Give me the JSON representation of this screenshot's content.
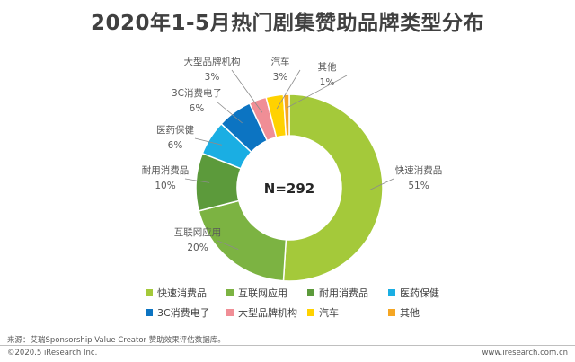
{
  "chart_data": {
    "type": "pie",
    "title": "2020年1-5月热门剧集赞助品牌类型分布",
    "center_text": "N=292",
    "legend_placement": "bottom",
    "slices": [
      {
        "name": "快速消费品",
        "value": 51,
        "label": "51%",
        "color": "#a4c93a"
      },
      {
        "name": "互联网应用",
        "value": 20,
        "label": "20%",
        "color": "#7cb342"
      },
      {
        "name": "耐用消费品",
        "value": 10,
        "label": "10%",
        "color": "#5c9a3b"
      },
      {
        "name": "医药保健",
        "value": 6,
        "label": "6%",
        "color": "#1aaee3"
      },
      {
        "name": "3C消费电子",
        "value": 6,
        "label": "6%",
        "color": "#0c74c2"
      },
      {
        "name": "大型品牌机构",
        "value": 3,
        "label": "3%",
        "color": "#f08e96"
      },
      {
        "name": "汽车",
        "value": 3,
        "label": "3%",
        "color": "#ffd200"
      },
      {
        "name": "其他",
        "value": 1,
        "label": "1%",
        "color": "#f5a623"
      }
    ]
  },
  "source": "来源：艾瑞Sponsorship Value Creator 赞助效果评估数据库。",
  "footer": {
    "copyright": "©2020.5 iResearch Inc.",
    "url": "www.iresearch.com.cn"
  }
}
